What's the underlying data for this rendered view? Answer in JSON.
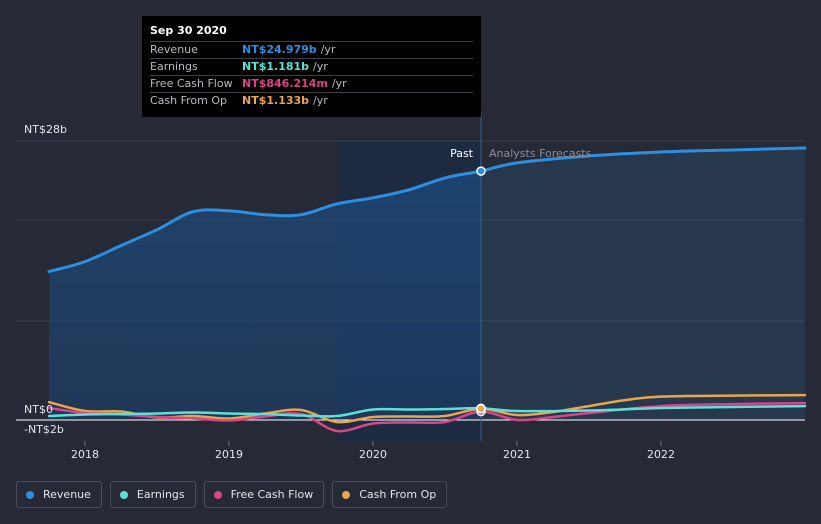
{
  "tooltip": {
    "date": "Sep 30 2020",
    "rows": [
      {
        "label": "Revenue",
        "value": "NT$24.979b",
        "unit": "/yr",
        "color": "#2d8fe0"
      },
      {
        "label": "Earnings",
        "value": "NT$1.181b",
        "unit": "/yr",
        "color": "#5fe0d6"
      },
      {
        "label": "Free Cash Flow",
        "value": "NT$846.214m",
        "unit": "/yr",
        "color": "#d9458a"
      },
      {
        "label": "Cash From Op",
        "value": "NT$1.133b",
        "unit": "/yr",
        "color": "#e8a54c"
      }
    ]
  },
  "legend": [
    {
      "label": "Revenue",
      "color": "#2d8fe0"
    },
    {
      "label": "Earnings",
      "color": "#5fe0d6"
    },
    {
      "label": "Free Cash Flow",
      "color": "#d9458a"
    },
    {
      "label": "Cash From Op",
      "color": "#e8a54c"
    }
  ],
  "chart_data": {
    "type": "line",
    "y_tick_labels": [
      "NT$28b",
      "NT$0",
      "-NT$2b"
    ],
    "x_tick_labels": [
      "2018",
      "2019",
      "2020",
      "2021",
      "2022"
    ],
    "past_label": "Past",
    "forecast_label": "Analysts Forecasts",
    "ylim": [
      -2,
      28
    ],
    "xlim": [
      2017.6,
      2023.0
    ],
    "divider_x": 2020.75,
    "grid": true,
    "series": [
      {
        "name": "Revenue",
        "color": "#2d8fe0",
        "x": [
          2017.75,
          2018.0,
          2018.25,
          2018.5,
          2018.75,
          2019.0,
          2019.25,
          2019.5,
          2019.75,
          2020.0,
          2020.25,
          2020.5,
          2020.75,
          2021.0,
          2021.5,
          2022.0,
          2022.5,
          2023.0
        ],
        "y": [
          14.9,
          15.9,
          17.5,
          19.1,
          20.9,
          21.0,
          20.6,
          20.6,
          21.7,
          22.3,
          23.1,
          24.3,
          24.979,
          25.8,
          26.5,
          26.9,
          27.1,
          27.3
        ]
      },
      {
        "name": "Earnings",
        "color": "#5fe0d6",
        "x": [
          2017.75,
          2018.0,
          2018.25,
          2018.5,
          2018.75,
          2019.0,
          2019.25,
          2019.5,
          2019.75,
          2020.0,
          2020.25,
          2020.5,
          2020.75,
          2021.0,
          2021.5,
          2022.0,
          2022.5,
          2023.0
        ],
        "y": [
          0.4,
          0.55,
          0.6,
          0.65,
          0.75,
          0.65,
          0.6,
          0.45,
          0.4,
          1.05,
          1.05,
          1.1,
          1.181,
          0.9,
          0.95,
          1.2,
          1.3,
          1.4
        ]
      },
      {
        "name": "Free Cash Flow",
        "color": "#d9458a",
        "x": [
          2017.75,
          2018.0,
          2018.25,
          2018.5,
          2018.75,
          2019.0,
          2019.25,
          2019.5,
          2019.75,
          2020.0,
          2020.25,
          2020.5,
          2020.75,
          2021.0,
          2021.25,
          2021.5,
          2022.0,
          2022.5,
          2023.0
        ],
        "y": [
          1.2,
          0.7,
          0.55,
          0.3,
          0.15,
          -0.05,
          0.35,
          0.6,
          -1.1,
          -0.35,
          -0.25,
          -0.2,
          0.846,
          0.0,
          0.3,
          0.7,
          1.4,
          1.6,
          1.7
        ]
      },
      {
        "name": "Cash From Op",
        "color": "#e8a54c",
        "x": [
          2017.75,
          2018.0,
          2018.25,
          2018.5,
          2018.75,
          2019.0,
          2019.25,
          2019.5,
          2019.75,
          2020.0,
          2020.25,
          2020.5,
          2020.75,
          2021.0,
          2021.25,
          2021.5,
          2021.75,
          2022.0,
          2022.5,
          2023.0
        ],
        "y": [
          1.8,
          0.9,
          0.85,
          0.25,
          0.4,
          0.15,
          0.65,
          1.0,
          -0.2,
          0.3,
          0.35,
          0.4,
          1.133,
          0.5,
          0.8,
          1.4,
          2.0,
          2.35,
          2.45,
          2.5
        ]
      }
    ]
  }
}
